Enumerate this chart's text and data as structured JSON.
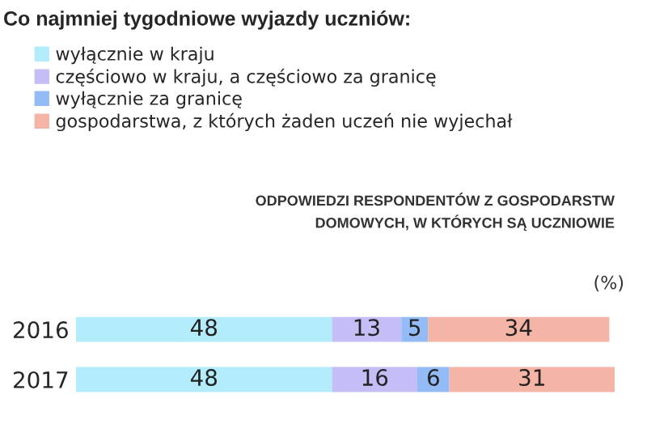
{
  "chart_data": {
    "type": "bar",
    "orientation": "horizontal",
    "stacked": true,
    "data_labels": true,
    "legend": "top left",
    "grid": false,
    "title": "Co najmniej tygodniowe wyjazdy uczniów:",
    "subtitle": "ODPOWIEDZI RESPONDENTÓW Z GOSPODARSTW\nDOMOWYCH, W KTÓRYCH SĄ UCZNIOWIE",
    "annotations": [
      "(%)"
    ],
    "categories": [
      "2016",
      "2017"
    ],
    "series": [
      {
        "name": "wyłącznie w kraju",
        "color": "#b3ecfb",
        "values": [
          48,
          48
        ]
      },
      {
        "name": "częściowo w kraju, a częściowo za granicę",
        "color": "#c4bdf6",
        "values": [
          13,
          16
        ]
      },
      {
        "name": "wyłącznie za granicę",
        "color": "#93bbf5",
        "values": [
          5,
          6
        ]
      },
      {
        "name": "gospodarstwa, z których żaden uczeń nie wyjechał",
        "color": "#f4b4a6",
        "values": [
          34,
          31
        ]
      }
    ]
  }
}
